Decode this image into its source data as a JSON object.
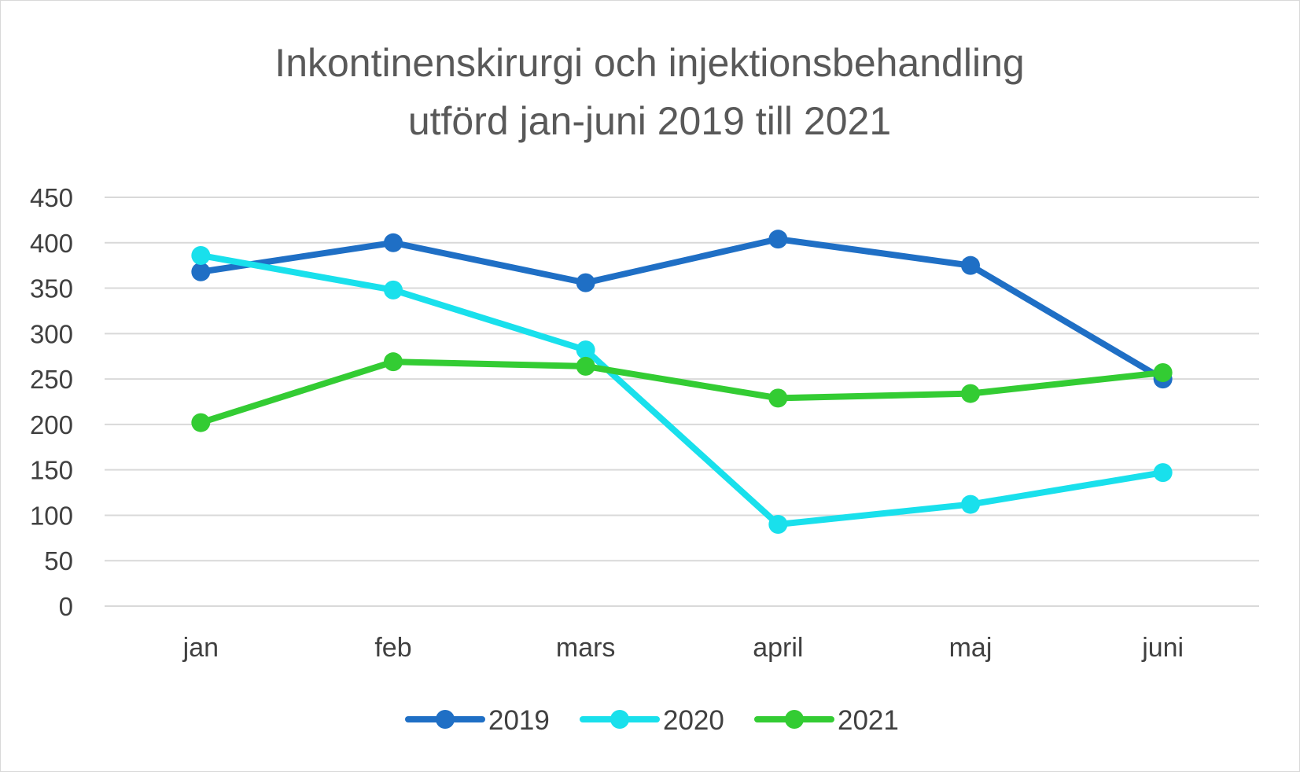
{
  "chart_data": {
    "type": "line",
    "title_lines": [
      "Inkontinenskirurgi och injektionsbehandling",
      "utförd jan-juni 2019 till 2021"
    ],
    "categories": [
      "jan",
      "feb",
      "mars",
      "april",
      "maj",
      "juni"
    ],
    "series": [
      {
        "name": "2019",
        "color": "#1f6fc5",
        "values": [
          368,
          400,
          356,
          404,
          375,
          250
        ]
      },
      {
        "name": "2020",
        "color": "#19e0ec",
        "values": [
          386,
          348,
          282,
          90,
          112,
          147
        ]
      },
      {
        "name": "2021",
        "color": "#33cc33",
        "values": [
          202,
          269,
          264,
          229,
          234,
          257
        ]
      }
    ],
    "ylim": [
      0,
      450
    ],
    "yticks": [
      0,
      50,
      100,
      150,
      200,
      250,
      300,
      350,
      400,
      450
    ],
    "grid": true,
    "legend_position": "bottom"
  }
}
